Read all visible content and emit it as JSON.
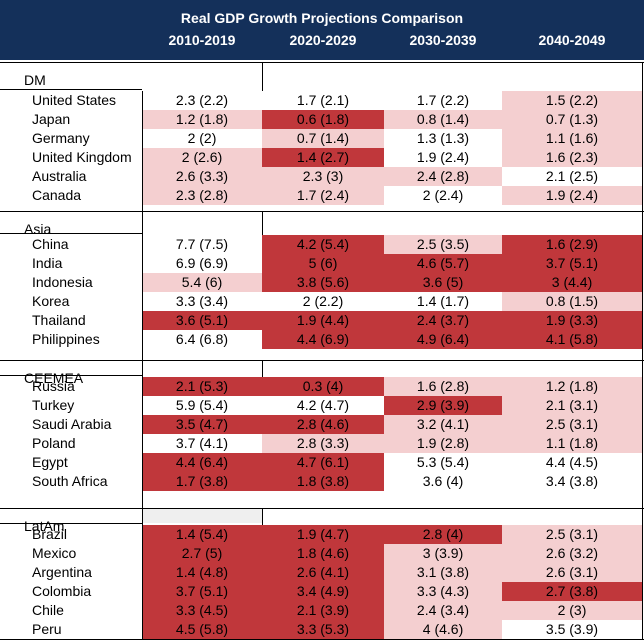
{
  "title": "Real GDP Growth Projections Comparison",
  "columns": [
    "2010-2019",
    "2020-2029",
    "2030-2039",
    "2040-2049"
  ],
  "legend_colors": {
    "dark": "#c0373b",
    "light": "#f4cfd0",
    "none": "#ffffff",
    "header": "#14305a"
  },
  "groups": [
    {
      "name": "DM",
      "rows": [
        {
          "country": "United States",
          "values": [
            "2.3 (2.2)",
            "1.7 (2.1)",
            "1.7 (2.2)",
            "1.5 (2.2)"
          ],
          "shade": [
            "none",
            "none",
            "none",
            "light"
          ]
        },
        {
          "country": "Japan",
          "values": [
            "1.2 (1.8)",
            "0.6 (1.8)",
            "0.8 (1.4)",
            "0.7 (1.3)"
          ],
          "shade": [
            "light",
            "dark",
            "light",
            "light"
          ]
        },
        {
          "country": "Germany",
          "values": [
            "2 (2)",
            "0.7 (1.4)",
            "1.3 (1.3)",
            "1.1 (1.6)"
          ],
          "shade": [
            "none",
            "light",
            "none",
            "light"
          ]
        },
        {
          "country": "United Kingdom",
          "values": [
            "2 (2.6)",
            "1.4 (2.7)",
            "1.9 (2.4)",
            "1.6 (2.3)"
          ],
          "shade": [
            "light",
            "dark",
            "none",
            "light"
          ]
        },
        {
          "country": "Australia",
          "values": [
            "2.6 (3.3)",
            "2.3 (3)",
            "2.4 (2.8)",
            "2.1 (2.5)"
          ],
          "shade": [
            "light",
            "light",
            "light",
            "none"
          ]
        },
        {
          "country": "Canada",
          "values": [
            "2.3 (2.8)",
            "1.7 (2.4)",
            "2 (2.4)",
            "1.9 (2.4)"
          ],
          "shade": [
            "light",
            "light",
            "none",
            "light"
          ]
        }
      ]
    },
    {
      "name": "Asia",
      "rows": [
        {
          "country": "China",
          "values": [
            "7.7 (7.5)",
            "4.2 (5.4)",
            "2.5 (3.5)",
            "1.6 (2.9)"
          ],
          "shade": [
            "none",
            "dark",
            "light",
            "dark"
          ]
        },
        {
          "country": "India",
          "values": [
            "6.9 (6.9)",
            "5 (6)",
            "4.6 (5.7)",
            "3.7 (5.1)"
          ],
          "shade": [
            "none",
            "dark",
            "dark",
            "dark"
          ]
        },
        {
          "country": "Indonesia",
          "values": [
            "5.4 (6)",
            "3.8 (5.6)",
            "3.6 (5)",
            "3 (4.4)"
          ],
          "shade": [
            "light",
            "dark",
            "dark",
            "dark"
          ]
        },
        {
          "country": "Korea",
          "values": [
            "3.3 (3.4)",
            "2 (2.2)",
            "1.4 (1.7)",
            "0.8 (1.5)"
          ],
          "shade": [
            "none",
            "none",
            "none",
            "light"
          ]
        },
        {
          "country": "Thailand",
          "values": [
            "3.6 (5.1)",
            "1.9 (4.4)",
            "2.4 (3.7)",
            "1.9 (3.3)"
          ],
          "shade": [
            "dark",
            "dark",
            "dark",
            "dark"
          ]
        },
        {
          "country": "Philippines",
          "values": [
            "6.4 (6.8)",
            "4.4 (6.9)",
            "4.9 (6.4)",
            "4.1 (5.8)"
          ],
          "shade": [
            "none",
            "dark",
            "dark",
            "dark"
          ]
        }
      ]
    },
    {
      "name": "CEEMEA",
      "rows": [
        {
          "country": "Russia",
          "values": [
            "2.1 (5.3)",
            "0.3 (4)",
            "1.6 (2.8)",
            "1.2 (1.8)"
          ],
          "shade": [
            "dark",
            "dark",
            "light",
            "light"
          ]
        },
        {
          "country": "Turkey",
          "values": [
            "5.9 (5.4)",
            "4.2 (4.7)",
            "2.9 (3.9)",
            "2.1 (3.1)"
          ],
          "shade": [
            "none",
            "none",
            "dark",
            "light"
          ]
        },
        {
          "country": "Saudi Arabia",
          "values": [
            "3.5 (4.7)",
            "2.8 (4.6)",
            "3.2 (4.1)",
            "2.5 (3.1)"
          ],
          "shade": [
            "dark",
            "dark",
            "light",
            "light"
          ]
        },
        {
          "country": "Poland",
          "values": [
            "3.7 (4.1)",
            "2.8 (3.3)",
            "1.9 (2.8)",
            "1.1 (1.8)"
          ],
          "shade": [
            "none",
            "light",
            "light",
            "light"
          ]
        },
        {
          "country": "Egypt",
          "values": [
            "4.4 (6.4)",
            "4.7 (6.1)",
            "5.3 (5.4)",
            "4.4 (4.5)"
          ],
          "shade": [
            "dark",
            "dark",
            "none",
            "none"
          ]
        },
        {
          "country": "South Africa",
          "values": [
            "1.7 (3.8)",
            "1.8 (3.8)",
            "3.6 (4)",
            "3.4 (3.8)"
          ],
          "shade": [
            "dark",
            "dark",
            "none",
            "none"
          ]
        }
      ]
    },
    {
      "name": "LatAm",
      "rows": [
        {
          "country": "Brazil",
          "values": [
            "1.4 (5.4)",
            "1.9 (4.7)",
            "2.8 (4)",
            "2.5 (3.1)"
          ],
          "shade": [
            "dark",
            "dark",
            "dark",
            "light"
          ]
        },
        {
          "country": "Mexico",
          "values": [
            "2.7 (5)",
            "1.8 (4.6)",
            "3 (3.9)",
            "2.6 (3.2)"
          ],
          "shade": [
            "dark",
            "dark",
            "light",
            "light"
          ]
        },
        {
          "country": "Argentina",
          "values": [
            "1.4 (4.8)",
            "2.6 (4.1)",
            "3.1 (3.8)",
            "2.6 (3.1)"
          ],
          "shade": [
            "dark",
            "dark",
            "light",
            "light"
          ]
        },
        {
          "country": "Colombia",
          "values": [
            "3.7 (5.1)",
            "3.4 (4.9)",
            "3.3 (4.3)",
            "2.7 (3.8)"
          ],
          "shade": [
            "dark",
            "dark",
            "light",
            "dark"
          ]
        },
        {
          "country": "Chile",
          "values": [
            "3.3 (4.5)",
            "2.1 (3.9)",
            "2.4 (3.4)",
            "2 (3)"
          ],
          "shade": [
            "dark",
            "dark",
            "light",
            "light"
          ]
        },
        {
          "country": "Peru",
          "values": [
            "4.5 (5.8)",
            "3.3 (5.3)",
            "4 (4.6)",
            "3.5 (3.9)"
          ],
          "shade": [
            "dark",
            "dark",
            "light",
            "none"
          ]
        }
      ]
    }
  ]
}
